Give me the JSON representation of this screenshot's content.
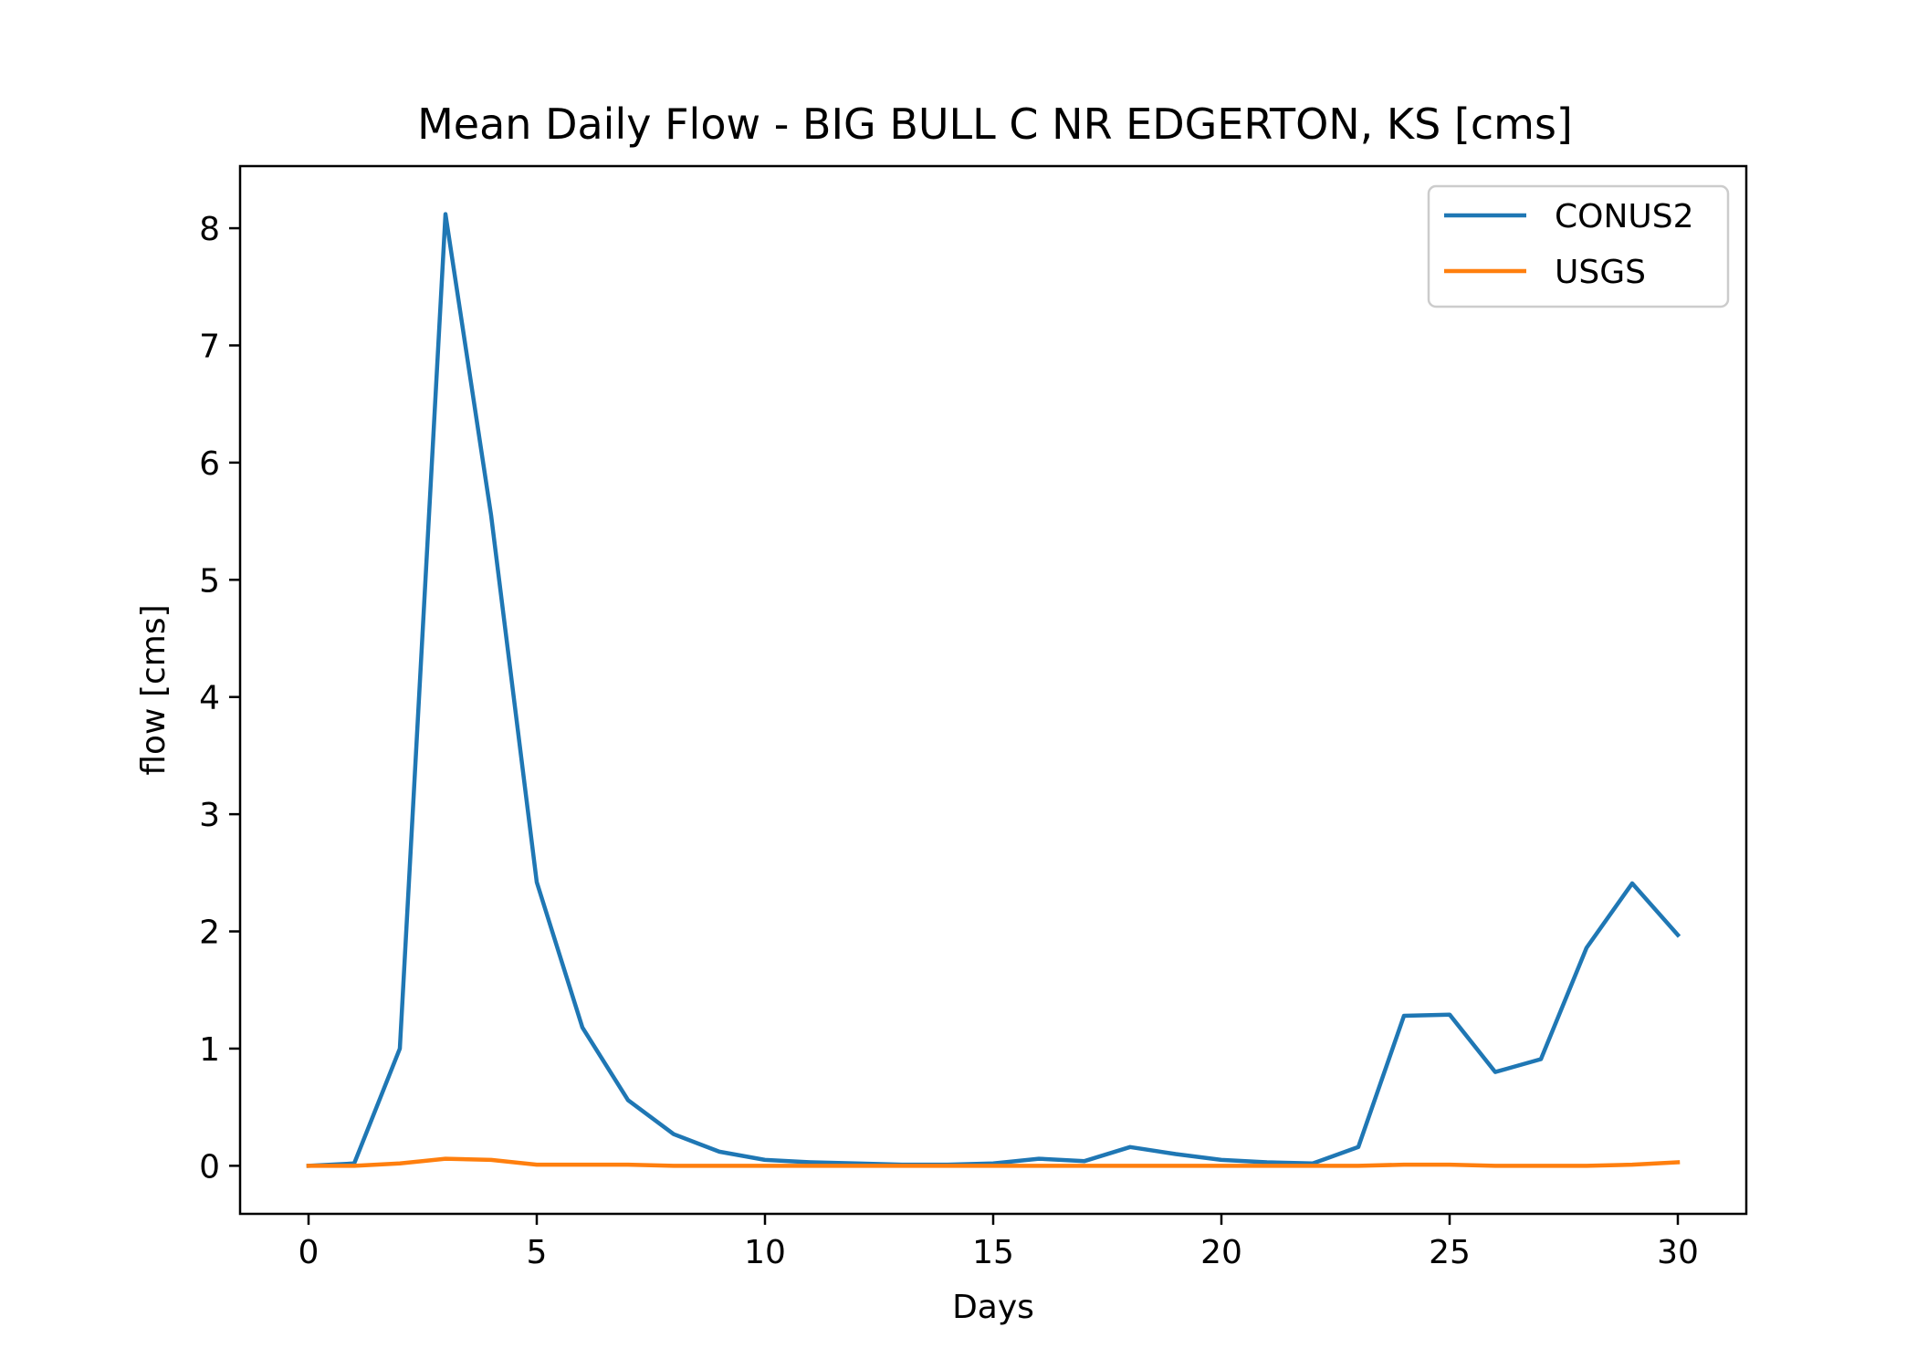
{
  "chart_data": {
    "type": "line",
    "title": "Mean Daily Flow - BIG BULL C NR EDGERTON, KS [cms]",
    "xlabel": "Days",
    "ylabel": "flow [cms]",
    "xlim": [
      -1.5,
      31.5
    ],
    "ylim": [
      -0.41,
      8.53
    ],
    "x_ticks": [
      0,
      5,
      10,
      15,
      20,
      25,
      30
    ],
    "y_ticks": [
      0,
      1,
      2,
      3,
      4,
      5,
      6,
      7,
      8
    ],
    "grid": false,
    "legend_position": "top-right",
    "x": [
      0,
      1,
      2,
      3,
      4,
      5,
      6,
      7,
      8,
      9,
      10,
      11,
      12,
      13,
      14,
      15,
      16,
      17,
      18,
      19,
      20,
      21,
      22,
      23,
      24,
      25,
      26,
      27,
      28,
      29,
      30
    ],
    "series": [
      {
        "name": "CONUS2",
        "color": "#1f77b4",
        "values": [
          0.0,
          0.02,
          1.0,
          8.12,
          5.55,
          2.42,
          1.18,
          0.56,
          0.27,
          0.12,
          0.05,
          0.03,
          0.02,
          0.01,
          0.01,
          0.02,
          0.06,
          0.04,
          0.16,
          0.1,
          0.05,
          0.03,
          0.02,
          0.16,
          1.28,
          1.29,
          0.8,
          0.91,
          1.86,
          2.41,
          1.97
        ]
      },
      {
        "name": "USGS",
        "color": "#ff7f0e",
        "values": [
          0.0,
          0.0,
          0.02,
          0.06,
          0.05,
          0.01,
          0.01,
          0.01,
          0.0,
          0.0,
          0.0,
          0.0,
          0.0,
          0.0,
          0.0,
          0.0,
          0.0,
          0.0,
          0.0,
          0.0,
          0.0,
          0.0,
          0.0,
          0.0,
          0.01,
          0.01,
          0.0,
          0.0,
          0.0,
          0.01,
          0.03
        ]
      }
    ]
  }
}
